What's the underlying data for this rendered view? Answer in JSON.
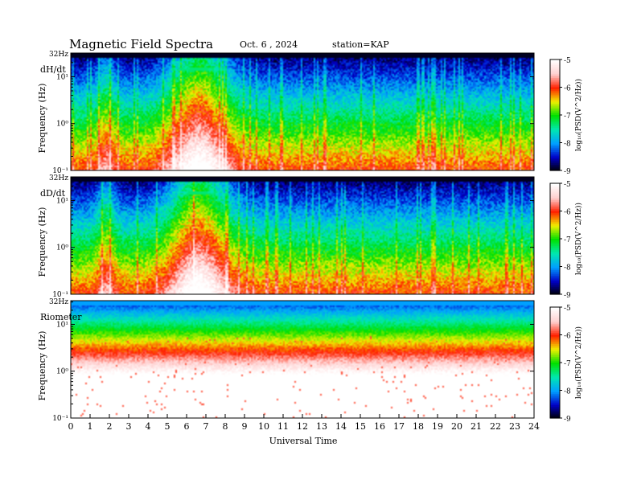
{
  "header": {
    "title": "Magnetic  Field  Spectra",
    "date": "Oct. 6  , 2024",
    "station": "station=KAP"
  },
  "chart_data": {
    "type": "heatmap",
    "xlabel": "Universal Time",
    "x_ticks": [
      "0",
      "1",
      "2",
      "3",
      "4",
      "5",
      "6",
      "7",
      "8",
      "9",
      "10",
      "11",
      "12",
      "13",
      "14",
      "15",
      "16",
      "17",
      "18",
      "19",
      "20",
      "21",
      "22",
      "23",
      "24"
    ],
    "xlim": [
      0,
      24
    ],
    "colorbar_label": "log₁₀(PSD(V^2/Hz))",
    "colorbar_ticks": [
      "-5",
      "-6",
      "-7",
      "-8",
      "-9"
    ],
    "colorbar_range": [
      -9,
      -5
    ],
    "panels": [
      {
        "name": "dH/dt",
        "ylabel": "Frequency  (Hz)",
        "top_label": "32Hz",
        "y_ticks": [
          "10¹",
          "10⁰",
          "10⁻¹"
        ],
        "ylim_hz": [
          0.1,
          32
        ],
        "kind": "magnetometer"
      },
      {
        "name": "dD/dt",
        "ylabel": "Frequency  (Hz)",
        "top_label": "32Hz",
        "y_ticks": [
          "10¹",
          "10⁰",
          "10⁻¹"
        ],
        "ylim_hz": [
          0.1,
          32
        ],
        "kind": "magnetometer"
      },
      {
        "name": "Riometer",
        "ylabel": "Frequency  (Hz)",
        "top_label": "32Hz",
        "y_ticks": [
          "10¹",
          "10⁰",
          "10⁻¹"
        ],
        "ylim_hz": [
          0.1,
          32
        ],
        "kind": "riometer"
      }
    ],
    "colormap": [
      "#000000",
      "#0000c8",
      "#00a0ff",
      "#00e8b0",
      "#00e000",
      "#f0f000",
      "#ff2000",
      "#ffd0d0",
      "#ffffff"
    ]
  }
}
